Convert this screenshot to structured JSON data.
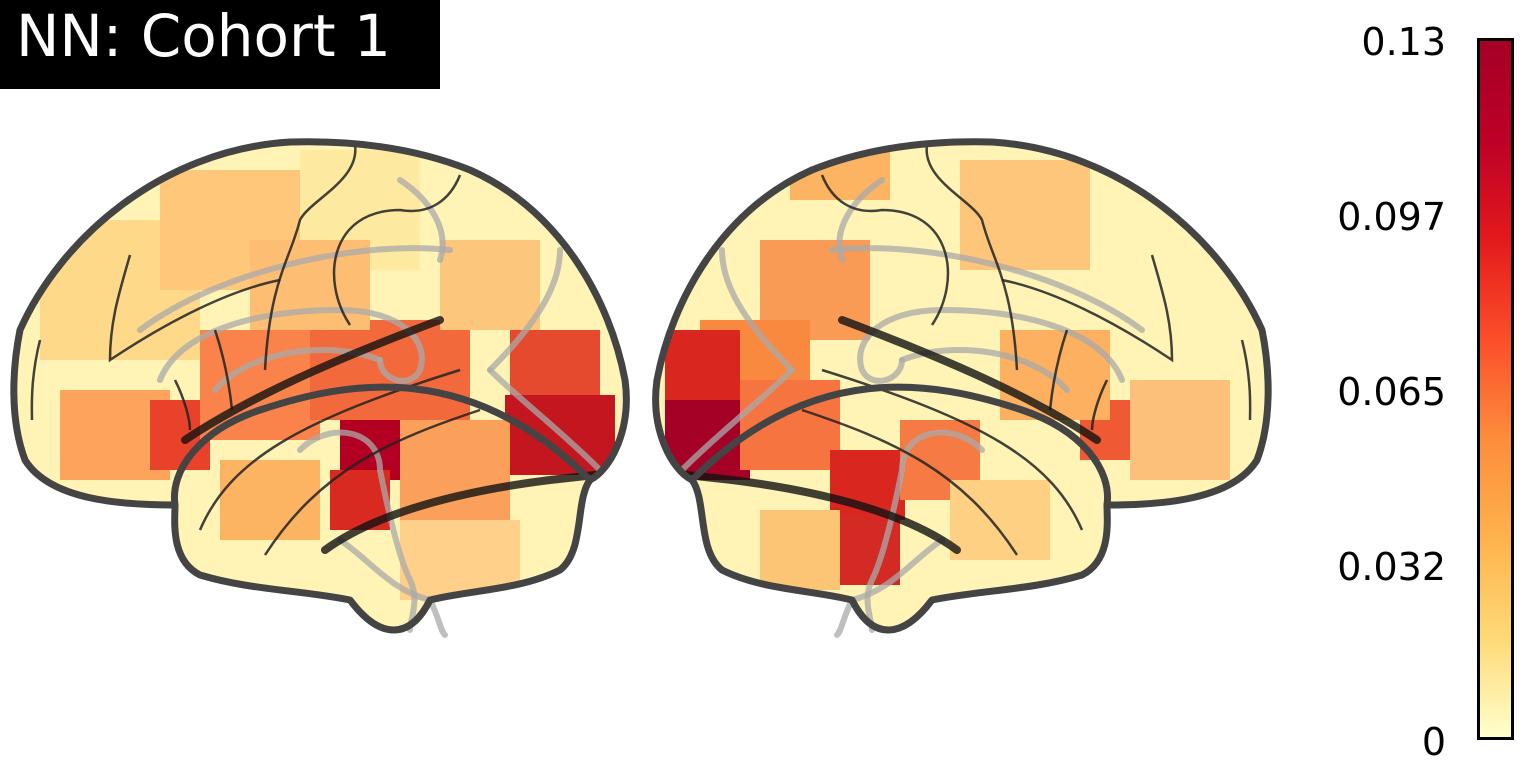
{
  "title": "NN: Cohort 1",
  "colorbar": {
    "colormap": "YlOrRd",
    "colors": [
      "#ffffcc",
      "#fed976",
      "#feb24c",
      "#fd8d3c",
      "#fc4e2a",
      "#e31a1c",
      "#bd0026",
      "#a50026"
    ],
    "min": 0,
    "max": 0.13,
    "ticks": [
      "0.13",
      "0.097",
      "0.065",
      "0.032",
      "0"
    ]
  },
  "views": [
    "left-lateral",
    "right-lateral"
  ],
  "outline_color": "#444444"
}
